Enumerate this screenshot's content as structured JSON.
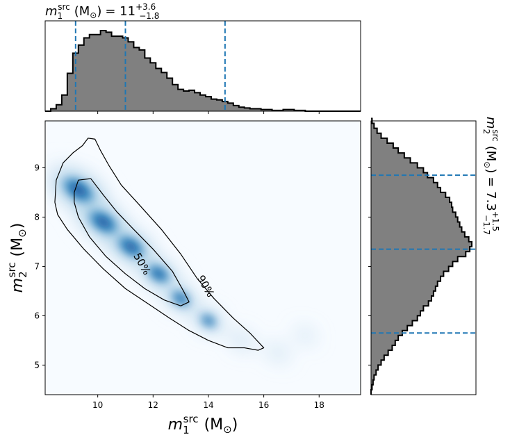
{
  "chart_data": [
    {
      "type": "bar",
      "role": "top-marginal-histogram",
      "title_base": "m",
      "title_sub": "1",
      "title_sup": "src",
      "title_unit": "(M",
      "title_unit_sub": "⊙",
      "title_unit_close": ")",
      "title_eq": "= 11",
      "title_err_plus": "+3.6",
      "title_err_minus": "−1.8",
      "xlim": [
        8.1,
        19.5
      ],
      "bin_edges_start": 8.1,
      "bin_width": 0.2,
      "values": [
        0.0,
        0.03,
        0.08,
        0.2,
        0.47,
        0.72,
        0.82,
        0.91,
        0.95,
        0.95,
        1.0,
        0.98,
        0.93,
        0.93,
        0.91,
        0.86,
        0.79,
        0.76,
        0.66,
        0.6,
        0.53,
        0.48,
        0.41,
        0.33,
        0.27,
        0.25,
        0.26,
        0.23,
        0.2,
        0.18,
        0.15,
        0.14,
        0.12,
        0.1,
        0.07,
        0.05,
        0.04,
        0.03,
        0.03,
        0.02,
        0.02,
        0.01,
        0.01,
        0.02,
        0.02,
        0.01,
        0.01,
        0.0,
        0.0,
        0.0,
        0.0,
        0.0,
        0.0,
        0.0,
        0.0,
        0.0,
        0.0
      ],
      "quantile_lines": [
        9.2,
        11.0,
        14.6
      ]
    },
    {
      "type": "heatmap",
      "role": "joint-density",
      "xlabel_base": "m",
      "xlabel_sub": "1",
      "xlabel_sup": "src",
      "xlabel_unit": "(M",
      "xlabel_unit_sub": "⊙",
      "xlabel_unit_close": ")",
      "ylabel_base": "m",
      "ylabel_sub": "2",
      "ylabel_sup": "src",
      "ylabel_unit": "(M",
      "ylabel_unit_sub": "⊙",
      "ylabel_unit_close": ")",
      "xlim": [
        8.1,
        19.5
      ],
      "ylim": [
        4.4,
        9.95
      ],
      "x_ticks": [
        10,
        12,
        14,
        16,
        18
      ],
      "x_tick_labels": [
        "10",
        "12",
        "14",
        "16",
        "18"
      ],
      "y_ticks": [
        5,
        6,
        7,
        8,
        9
      ],
      "y_tick_labels": [
        "5",
        "6",
        "7",
        "8",
        "9"
      ],
      "colormap": "Blues",
      "density_ridge": [
        {
          "x": 9.3,
          "y": 8.55,
          "w": 0.65
        },
        {
          "x": 10.2,
          "y": 7.9,
          "w": 0.6
        },
        {
          "x": 11.2,
          "y": 7.4,
          "w": 0.55
        },
        {
          "x": 12.2,
          "y": 6.85,
          "w": 0.45
        },
        {
          "x": 13.0,
          "y": 6.35,
          "w": 0.38
        },
        {
          "x": 14.0,
          "y": 5.9,
          "w": 0.32
        },
        {
          "x": 15.2,
          "y": 5.5,
          "w": 0.28
        },
        {
          "x": 16.5,
          "y": 5.25,
          "w": 0.25
        },
        {
          "x": 17.5,
          "y": 5.6,
          "w": 0.22
        }
      ],
      "contours": [
        {
          "label": "50%",
          "label_pos": {
            "x": 11.6,
            "y": 7.05
          },
          "label_angle": 60,
          "points": [
            [
              9.15,
              8.5
            ],
            [
              9.3,
              8.75
            ],
            [
              9.75,
              8.78
            ],
            [
              10.2,
              8.45
            ],
            [
              10.7,
              8.1
            ],
            [
              11.3,
              7.75
            ],
            [
              12.0,
              7.35
            ],
            [
              12.7,
              6.9
            ],
            [
              13.1,
              6.5
            ],
            [
              13.3,
              6.28
            ],
            [
              13.0,
              6.2
            ],
            [
              12.4,
              6.32
            ],
            [
              11.7,
              6.55
            ],
            [
              11.0,
              6.85
            ],
            [
              10.3,
              7.2
            ],
            [
              9.7,
              7.6
            ],
            [
              9.3,
              8.0
            ],
            [
              9.15,
              8.3
            ],
            [
              9.15,
              8.5
            ]
          ]
        },
        {
          "label": "90%",
          "label_pos": {
            "x": 13.9,
            "y": 6.6
          },
          "label_angle": 60,
          "points": [
            [
              8.45,
              8.3
            ],
            [
              8.5,
              8.75
            ],
            [
              8.75,
              9.1
            ],
            [
              9.1,
              9.3
            ],
            [
              9.45,
              9.45
            ],
            [
              9.65,
              9.6
            ],
            [
              9.9,
              9.58
            ],
            [
              10.1,
              9.35
            ],
            [
              10.4,
              9.05
            ],
            [
              10.85,
              8.65
            ],
            [
              11.5,
              8.25
            ],
            [
              12.3,
              7.75
            ],
            [
              13.0,
              7.25
            ],
            [
              13.6,
              6.75
            ],
            [
              14.2,
              6.35
            ],
            [
              14.9,
              5.95
            ],
            [
              15.5,
              5.65
            ],
            [
              16.0,
              5.35
            ],
            [
              15.8,
              5.3
            ],
            [
              15.3,
              5.35
            ],
            [
              14.7,
              5.35
            ],
            [
              14.0,
              5.5
            ],
            [
              13.3,
              5.7
            ],
            [
              12.6,
              5.95
            ],
            [
              11.8,
              6.25
            ],
            [
              11.0,
              6.55
            ],
            [
              10.2,
              6.95
            ],
            [
              9.5,
              7.35
            ],
            [
              8.9,
              7.75
            ],
            [
              8.55,
              8.05
            ],
            [
              8.45,
              8.3
            ]
          ]
        }
      ]
    },
    {
      "type": "bar",
      "role": "right-marginal-histogram",
      "title_base": "m",
      "title_sub": "2",
      "title_sup": "src",
      "title_unit": "(M",
      "title_unit_sub": "⊙",
      "title_unit_close": ")",
      "title_eq": "= 7.3",
      "title_err_plus": "+1.5",
      "title_err_minus": "−1.7",
      "ylim": [
        4.4,
        9.95
      ],
      "bin_edges_start": 4.4,
      "bin_width": 0.1,
      "values": [
        0.0,
        0.01,
        0.02,
        0.03,
        0.05,
        0.07,
        0.1,
        0.13,
        0.17,
        0.21,
        0.24,
        0.27,
        0.31,
        0.36,
        0.41,
        0.46,
        0.49,
        0.52,
        0.57,
        0.6,
        0.62,
        0.64,
        0.66,
        0.69,
        0.72,
        0.77,
        0.81,
        0.86,
        0.94,
        0.98,
        1.0,
        0.97,
        0.93,
        0.9,
        0.88,
        0.86,
        0.84,
        0.81,
        0.8,
        0.78,
        0.74,
        0.69,
        0.66,
        0.62,
        0.56,
        0.52,
        0.46,
        0.39,
        0.33,
        0.27,
        0.22,
        0.16,
        0.1,
        0.06,
        0.03,
        0.01
      ],
      "quantile_lines": [
        5.65,
        7.35,
        8.85
      ]
    }
  ],
  "colors": {
    "hist_fill": "#808080",
    "hist_edge": "#000000",
    "quantile_line": "#1f77b4",
    "contour": "#000000",
    "axes": "#000000"
  }
}
